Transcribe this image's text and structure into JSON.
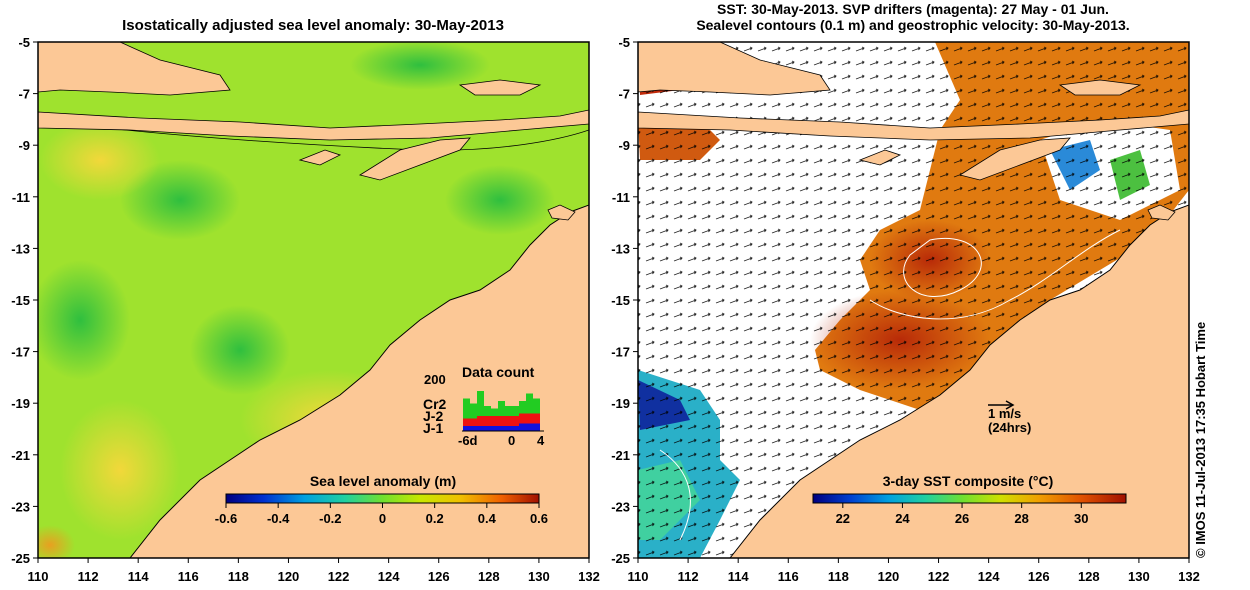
{
  "left_panel": {
    "title": "Isostatically adjusted sea level anomaly: 30-May-2013",
    "colorbar": {
      "label": "Sea level anomaly (m)",
      "ticks": [
        "-0.6",
        "-0.4",
        "-0.2",
        "0",
        "0.2",
        "0.4",
        "0.6"
      ],
      "range": [
        -0.6,
        0.6
      ]
    },
    "data_count": {
      "title": "Data count",
      "y_max_label": "200",
      "x_labels": [
        "-6d",
        "0",
        "4"
      ],
      "legend": [
        {
          "name": "Cr2",
          "color": "#22cc22"
        },
        {
          "name": "J-2",
          "color": "#ee1111"
        },
        {
          "name": "J-1",
          "color": "#1111dd"
        }
      ],
      "bars": [
        {
          "j1": 20,
          "j2": 30,
          "cr2": 80
        },
        {
          "j1": 20,
          "j2": 30,
          "cr2": 60
        },
        {
          "j1": 20,
          "j2": 40,
          "cr2": 100
        },
        {
          "j1": 20,
          "j2": 40,
          "cr2": 40
        },
        {
          "j1": 20,
          "j2": 40,
          "cr2": 30
        },
        {
          "j1": 20,
          "j2": 40,
          "cr2": 60
        },
        {
          "j1": 20,
          "j2": 40,
          "cr2": 40
        },
        {
          "j1": 20,
          "j2": 40,
          "cr2": 40
        },
        {
          "j1": 30,
          "j2": 40,
          "cr2": 50
        },
        {
          "j1": 30,
          "j2": 40,
          "cr2": 80
        },
        {
          "j1": 30,
          "j2": 40,
          "cr2": 60
        }
      ]
    }
  },
  "right_panel": {
    "title_line1": "SST: 30-May-2013. SVP drifters (magenta): 27 May - 01 Jun.",
    "title_line2": "Sealevel contours (0.1 m) and geostrophic velocity: 30-May-2013.",
    "colorbar": {
      "label": "3-day SST composite (°C)",
      "ticks": [
        "22",
        "24",
        "26",
        "28",
        "30"
      ],
      "range": [
        21,
        31.5
      ]
    },
    "scale_arrow": {
      "label": "1 m/s",
      "sublabel": "(24hrs)"
    },
    "credit": "© IMOS 11-Jul-2013 17:35 Hobart Time"
  },
  "axes": {
    "lon_ticks": [
      "110",
      "112",
      "114",
      "116",
      "118",
      "120",
      "122",
      "124",
      "126",
      "128",
      "130",
      "132"
    ],
    "lat_ticks": [
      "-5",
      "-7",
      "-9",
      "-11",
      "-13",
      "-15",
      "-17",
      "-19",
      "-21",
      "-23",
      "-25"
    ]
  },
  "colors": {
    "land": "#fcc896",
    "background": "#ffffff"
  }
}
